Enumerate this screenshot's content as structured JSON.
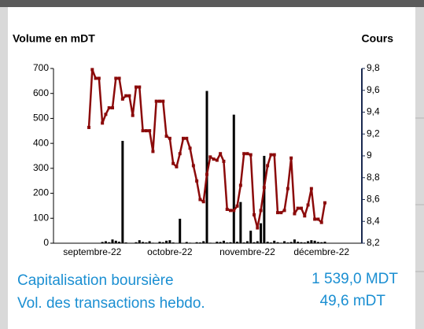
{
  "chart_data": {
    "type": "combo",
    "y_label": "Volume en mDT",
    "y2_label": "Cours",
    "categories": [
      null,
      "septembre-22",
      null,
      null,
      null,
      null,
      null,
      null,
      null,
      null,
      null,
      null,
      null,
      null,
      null,
      null,
      null,
      null,
      null,
      null,
      null,
      null,
      null,
      null,
      "octobre-22",
      null,
      null,
      null,
      null,
      null,
      null,
      null,
      null,
      null,
      null,
      null,
      null,
      null,
      null,
      null,
      null,
      null,
      null,
      null,
      null,
      null,
      null,
      "novembre-22",
      null,
      null,
      null,
      null,
      null,
      null,
      null,
      null,
      null,
      null,
      null,
      null,
      null,
      null,
      null,
      null,
      null,
      null,
      null,
      null,
      null,
      "décembre-22",
      null
    ],
    "series": [
      {
        "name": "Volume",
        "type": "bar",
        "color": "#000000",
        "values": [
          0,
          0,
          0,
          0,
          5,
          8,
          4,
          15,
          10,
          6,
          410,
          3,
          0,
          0,
          4,
          12,
          5,
          3,
          8,
          2,
          0,
          6,
          4,
          10,
          12,
          3,
          0,
          98,
          0,
          5,
          2,
          0,
          4,
          3,
          8,
          610,
          2,
          0,
          6,
          5,
          10,
          3,
          4,
          515,
          6,
          165,
          3,
          8,
          50,
          4,
          8,
          80,
          350,
          6,
          3,
          10,
          4,
          2,
          8,
          3,
          5,
          15,
          6,
          4,
          3,
          8,
          12,
          10,
          5,
          4,
          6
        ]
      },
      {
        "name": "Cours",
        "type": "line",
        "axis": "y2",
        "color": "#8b0a0a",
        "values": [
          9.26,
          9.79,
          9.71,
          9.71,
          9.3,
          9.38,
          9.44,
          9.44,
          9.71,
          9.71,
          9.52,
          9.55,
          9.55,
          9.37,
          9.63,
          9.63,
          9.23,
          9.23,
          9.23,
          9.04,
          9.5,
          9.5,
          9.5,
          9.18,
          9.16,
          8.93,
          8.9,
          9.02,
          9.16,
          9.16,
          9.07,
          8.91,
          8.77,
          8.6,
          8.58,
          8.83,
          8.99,
          8.97,
          8.96,
          9.02,
          8.95,
          8.51,
          8.5,
          8.5,
          8.54,
          8.73,
          9.02,
          9.02,
          9.01,
          8.46,
          8.34,
          8.5,
          8.71,
          8.91,
          9.01,
          9.01,
          8.48,
          8.48,
          8.5,
          8.7,
          8.98,
          8.47,
          8.52,
          8.52,
          8.45,
          8.55,
          8.7,
          8.42,
          8.42,
          8.39,
          8.57
        ]
      }
    ],
    "ylim": [
      0,
      700
    ],
    "yticks": [
      0,
      100,
      200,
      300,
      400,
      500,
      600,
      700
    ],
    "y2lim": [
      8.2,
      9.8
    ],
    "y2ticks": [
      {
        "value": 8.2,
        "label": "8,2"
      },
      {
        "value": 8.4,
        "label": "8,4"
      },
      {
        "value": 8.6,
        "label": "8,6"
      },
      {
        "value": 8.8,
        "label": "8,8"
      },
      {
        "value": 9,
        "label": "9"
      },
      {
        "value": 9.2,
        "label": "9,2"
      },
      {
        "value": 9.4,
        "label": "9,4"
      },
      {
        "value": 9.6,
        "label": "9,6"
      },
      {
        "value": 9.8,
        "label": "9,8"
      }
    ],
    "grid": false
  },
  "summary": [
    {
      "label": "Capitalisation boursière",
      "value": "1 539,0 MDT"
    },
    {
      "label": "Vol. des transactions hebdo.",
      "value": "49,6 mDT"
    }
  ]
}
